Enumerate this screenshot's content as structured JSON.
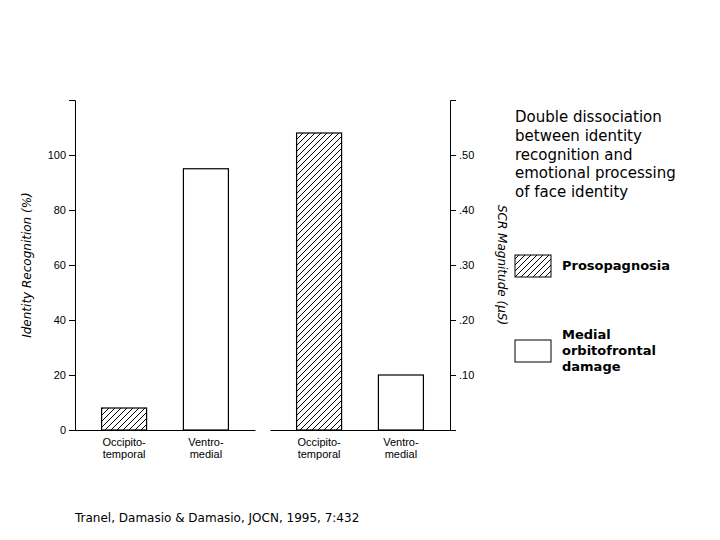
{
  "chart_data": [
    {
      "type": "bar",
      "title": "Double dissociation\nbetween identity\nrecognition and\nemotional processing\nof face identity",
      "annotations": [
        "Tranel, Damasio & Damasio, JOCN, 1995, 7:432"
      ],
      "ylabel": "Identity Recognition (%)",
      "categories": [
        "Occipito-\ntemporal",
        "Ventro-\nmedial"
      ],
      "series": [
        {
          "name": "Prosopagnosia",
          "color": "#ffffff",
          "values": [
            8,
            null
          ]
        },
        {
          "name": "Medial\norbitofrontal\ndamage",
          "color": "#ffffff",
          "values": [
            null,
            95
          ]
        }
      ],
      "ylim": [
        0,
        120
      ],
      "yticks": [
        0,
        20,
        40,
        60,
        80,
        100
      ],
      "grid": false
    },
    {
      "type": "bar",
      "ylabel": "SCR Magnitude (μS)",
      "categories": [
        "Occipito-\ntemporal",
        "Ventro-\nmedial"
      ],
      "series": [
        {
          "color": "#ffffff",
          "values": [
            0.54,
            null
          ]
        },
        {
          "color": "#ffffff",
          "values": [
            null,
            0.1
          ]
        }
      ],
      "ylim": [
        0,
        0.6
      ],
      "yticks": [
        {
          "value": 0.1,
          "label": ".10"
        },
        {
          "value": 0.2,
          "label": ".20"
        },
        {
          "value": 0.3,
          "label": ".30"
        },
        {
          "value": 0.4,
          "label": ".40"
        },
        {
          "value": 0.5,
          "label": ".50"
        }
      ],
      "grid": false
    }
  ]
}
